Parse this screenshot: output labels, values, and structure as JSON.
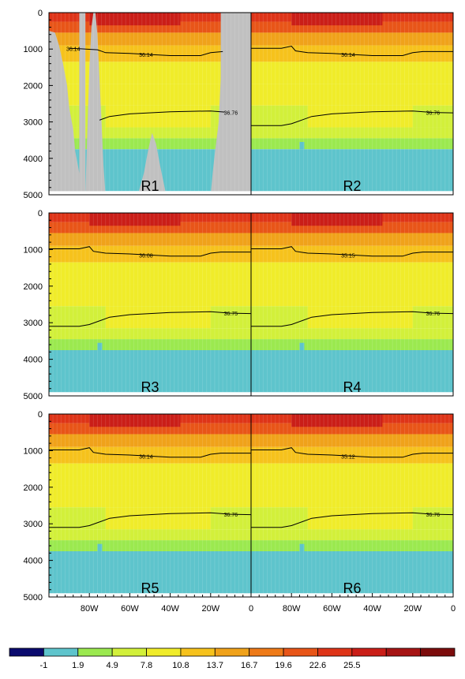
{
  "chart_data": {
    "type": "heatmap",
    "panel_labels": [
      "R1",
      "R2",
      "R3",
      "R4",
      "R5",
      "R6"
    ],
    "y_ticks": [
      0,
      1000,
      2000,
      3000,
      4000,
      5000
    ],
    "x_ticks": [
      "80W",
      "60W",
      "40W",
      "20W",
      "0"
    ],
    "x_range": [
      -100,
      0
    ],
    "y_range": [
      0,
      5000
    ],
    "colorbar": {
      "labels": [
        "-1",
        "1.9",
        "4.9",
        "7.8",
        "10.8",
        "13.7",
        "16.7",
        "19.6",
        "22.6",
        "25.5"
      ],
      "colors": [
        "#0a0a6e",
        "#5ec4cc",
        "#9be94f",
        "#d2f03a",
        "#f0ec2a",
        "#f6c21c",
        "#f0a21a",
        "#ee7a18",
        "#e85518",
        "#de3418",
        "#ca1e18",
        "#a61414",
        "#7c0c0c"
      ]
    },
    "isoline_labels": [
      {
        "panel": "R1",
        "upper": "36.14",
        "lower": "36.76"
      },
      {
        "panel": "R2",
        "upper": "36.14",
        "lower": "36.76"
      },
      {
        "panel": "R3",
        "upper": "36.08",
        "lower": "36.75"
      },
      {
        "panel": "R4",
        "upper": "35.15",
        "lower": "36.76"
      },
      {
        "panel": "R5",
        "upper": "36.14",
        "lower": "36.76"
      },
      {
        "panel": "R6",
        "upper": "35.12",
        "lower": "36.76"
      }
    ],
    "layers": [
      {
        "depth_top": 0,
        "depth_bottom": 250,
        "value": 24
      },
      {
        "depth_top": 250,
        "depth_bottom": 550,
        "value": 20
      },
      {
        "depth_top": 550,
        "depth_bottom": 900,
        "value": 16.5
      },
      {
        "depth_top": 900,
        "depth_bottom": 1350,
        "value": 13
      },
      {
        "depth_top": 1350,
        "depth_bottom": 1950,
        "value": 10
      },
      {
        "depth_top": 1950,
        "depth_bottom": 2550,
        "value": 8.5
      },
      {
        "depth_top": 2550,
        "depth_bottom": 3150,
        "value": 7
      },
      {
        "depth_top": 3150,
        "depth_bottom": 3450,
        "value": 5.5
      },
      {
        "depth_top": 3450,
        "depth_bottom": 3750,
        "value": 3
      },
      {
        "depth_top": 3750,
        "depth_bottom": 4900,
        "value": 0.5
      }
    ]
  }
}
